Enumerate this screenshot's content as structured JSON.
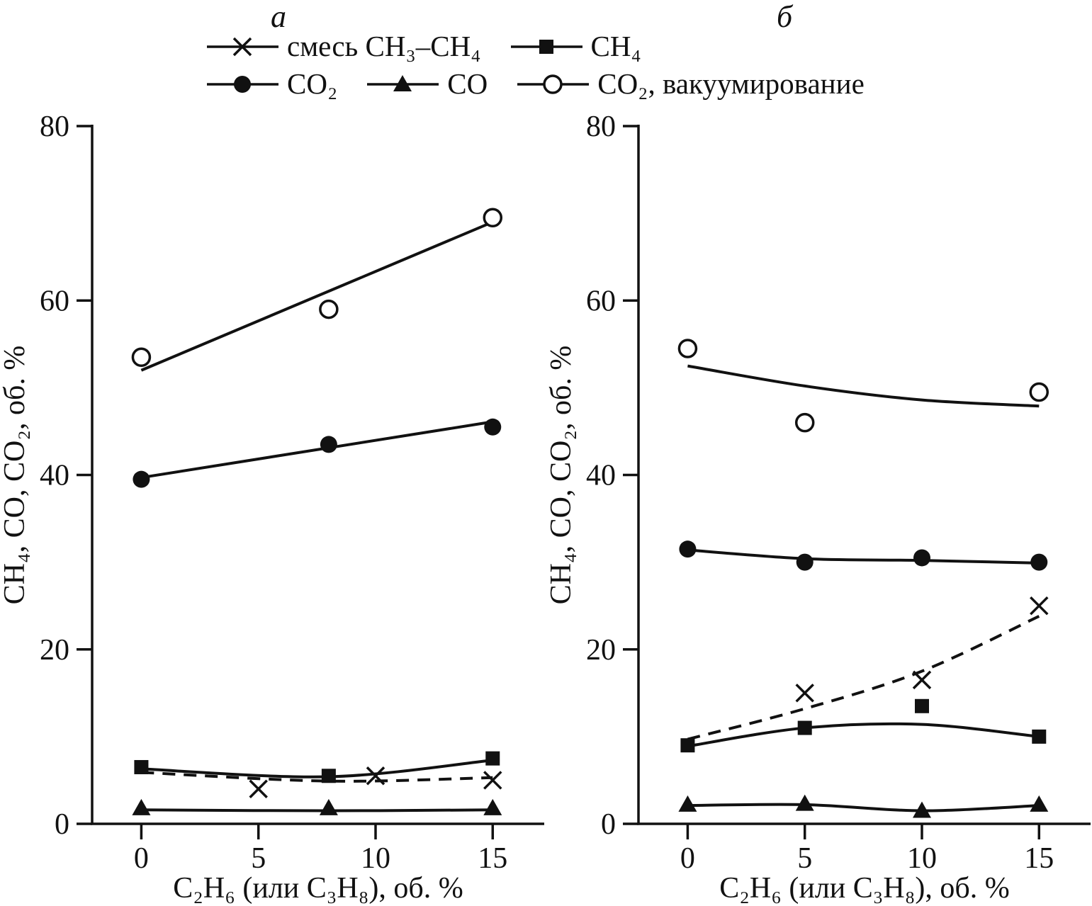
{
  "figure": {
    "ink": "#111111",
    "background": "#ffffff"
  },
  "legend": {
    "rows": [
      [
        {
          "series": "mixture",
          "label": "смесь CH₃–CH₄",
          "marker": "x-marker"
        },
        {
          "series": "ch4",
          "label": "CH₄",
          "marker": "filled-square"
        }
      ],
      [
        {
          "series": "co2",
          "label": "CO₂",
          "marker": "filled-circle"
        },
        {
          "series": "co",
          "label": "CO",
          "marker": "filled-triangle"
        },
        {
          "series": "co2-vacuum",
          "label": "CO₂, вакуумирование",
          "marker": "open-circle"
        }
      ]
    ]
  },
  "chart_data": [
    {
      "type": "scatter",
      "panel": "а",
      "xlabel": "C₂H₆ (или C₃H₈), об. %",
      "ylabel": "CH₄, CO, CO₂, об. %",
      "xlim": [
        -2.1,
        17.2
      ],
      "ylim": [
        0,
        80
      ],
      "xticks": [
        0,
        5,
        10,
        15
      ],
      "yticks": [
        0,
        20,
        40,
        60,
        80
      ],
      "grid": false,
      "series": [
        {
          "name": "co2-vacuum",
          "label": "CO₂, вакуумирование",
          "marker": "open-circle",
          "line": "solid",
          "points": [
            [
              0,
              53.5
            ],
            [
              8,
              59
            ],
            [
              15,
              69.5
            ]
          ],
          "trend": [
            [
              0,
              52
            ],
            [
              15,
              69
            ]
          ]
        },
        {
          "name": "co2",
          "label": "CO₂",
          "marker": "filled-circle",
          "line": "solid",
          "points": [
            [
              0,
              39.5
            ],
            [
              8,
              43.5
            ],
            [
              15,
              45.5
            ]
          ],
          "trend": [
            [
              0,
              39.7
            ],
            [
              15,
              46.1
            ]
          ]
        },
        {
          "name": "mixture",
          "label": "смесь CH₃–CH₄",
          "marker": "x-marker",
          "line": "dashed",
          "points": [
            [
              5,
              4
            ],
            [
              10,
              5.5
            ],
            [
              15,
              5
            ]
          ],
          "trend": [
            [
              0,
              5.9
            ],
            [
              8,
              4.9
            ],
            [
              15,
              5.3
            ]
          ]
        },
        {
          "name": "ch4",
          "label": "CH₄",
          "marker": "filled-square",
          "line": "solid",
          "points": [
            [
              0,
              6.5
            ],
            [
              8,
              5.5
            ],
            [
              15,
              7.5
            ]
          ],
          "trend": [
            [
              0,
              6.3
            ],
            [
              8,
              5.4
            ],
            [
              15,
              7.3
            ]
          ]
        },
        {
          "name": "co",
          "label": "CO",
          "marker": "filled-triangle",
          "line": "solid",
          "points": [
            [
              0,
              1.8
            ],
            [
              8,
              1.8
            ],
            [
              15,
              1.8
            ]
          ],
          "trend": [
            [
              0,
              1.6
            ],
            [
              8,
              1.5
            ],
            [
              15,
              1.6
            ]
          ]
        }
      ]
    },
    {
      "type": "scatter",
      "panel": "б",
      "xlabel": "C₂H₆ (или C₃H₈), об. %",
      "ylabel": "CH₄, CO, CO₂, об. %",
      "xlim": [
        -2.1,
        17.2
      ],
      "ylim": [
        0,
        80
      ],
      "xticks": [
        0,
        5,
        10,
        15
      ],
      "yticks": [
        0,
        20,
        40,
        60,
        80
      ],
      "grid": false,
      "series": [
        {
          "name": "co2-vacuum",
          "label": "CO₂, вакуумирование",
          "marker": "open-circle",
          "line": "solid",
          "points": [
            [
              0,
              54.5
            ],
            [
              5,
              46
            ],
            [
              15,
              49.5
            ]
          ],
          "trend": [
            [
              0,
              52.5
            ],
            [
              5,
              50.2
            ],
            [
              10,
              48.6
            ],
            [
              15,
              47.9
            ]
          ]
        },
        {
          "name": "co2",
          "label": "CO₂",
          "marker": "filled-circle",
          "line": "solid",
          "points": [
            [
              0,
              31.5
            ],
            [
              5,
              30
            ],
            [
              10,
              30.5
            ],
            [
              15,
              30
            ]
          ],
          "trend": [
            [
              0,
              31.4
            ],
            [
              5,
              30.4
            ],
            [
              10,
              30.2
            ],
            [
              15,
              29.9
            ]
          ]
        },
        {
          "name": "mixture",
          "label": "смесь CH₃–CH₄",
          "marker": "x-marker",
          "line": "dashed",
          "points": [
            [
              5,
              15
            ],
            [
              10,
              16.5
            ],
            [
              15,
              25
            ]
          ],
          "trend": [
            [
              0,
              9.7
            ],
            [
              5,
              13.2
            ],
            [
              10,
              17.5
            ],
            [
              15,
              23.8
            ]
          ]
        },
        {
          "name": "ch4",
          "label": "CH₄",
          "marker": "filled-square",
          "line": "solid",
          "points": [
            [
              0,
              9
            ],
            [
              5,
              11
            ],
            [
              10,
              13.5
            ],
            [
              15,
              10
            ]
          ],
          "trend": [
            [
              0,
              8.9
            ],
            [
              5,
              11
            ],
            [
              10,
              11.4
            ],
            [
              15,
              10
            ]
          ]
        },
        {
          "name": "co",
          "label": "CO",
          "marker": "filled-triangle",
          "line": "solid",
          "points": [
            [
              0,
              2.2
            ],
            [
              5,
              2.3
            ],
            [
              10,
              1.5
            ],
            [
              15,
              2.2
            ]
          ],
          "trend": [
            [
              0,
              2.1
            ],
            [
              5,
              2.2
            ],
            [
              10,
              1.5
            ],
            [
              15,
              2.1
            ]
          ]
        }
      ]
    }
  ]
}
